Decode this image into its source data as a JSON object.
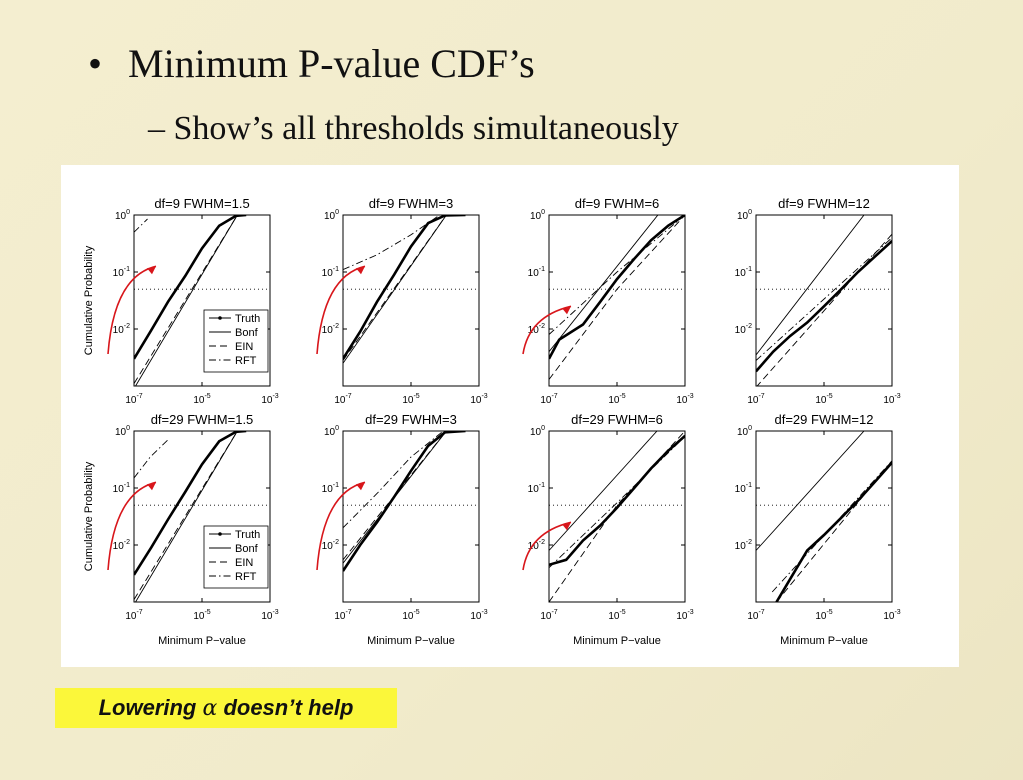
{
  "slide": {
    "bullet_symbol": "•",
    "bullet_text": "Minimum P-value CDF’s",
    "sub_bullet_text": "– Show’s all thresholds simultaneously",
    "callout": {
      "prefix": "Lowering ",
      "symbol": "α",
      "suffix": " doesn’t help"
    },
    "colors": {
      "background": "#f2ecce",
      "callout_bg": "#fbf73a",
      "arrow": "#d8161b"
    }
  },
  "chart_data": {
    "type": "line",
    "layout": "grid 2 rows x 4 columns",
    "xlabel": "Minimum P−value",
    "ylabel": "Cumulative Probability",
    "x_scale": "log",
    "y_scale": "log",
    "xlim": [
      1e-07,
      0.001
    ],
    "ylim": [
      0.001,
      1
    ],
    "x_ticks": [
      "10^-7",
      "10^-5",
      "10^-3"
    ],
    "y_ticks": [
      "10^0",
      "10^-1",
      "10^-2"
    ],
    "reference_line_y": 0.05,
    "legend": {
      "placement": "bottom-right of first panel in each row",
      "entries": [
        "Truth",
        "Bonf",
        "EIN",
        "RFT"
      ]
    },
    "panels": [
      {
        "title": "df=9  FWHM=1.5",
        "df": 9,
        "fwhm": 1.5,
        "series": [
          {
            "name": "Truth",
            "x": [
              1e-07,
              3.2e-07,
              1e-06,
              3.2e-06,
              1e-05,
              3.2e-05,
              0.0001,
              0.0002
            ],
            "y": [
              0.003,
              0.0095,
              0.03,
              0.085,
              0.26,
              0.65,
              0.97,
              1
            ]
          },
          {
            "name": "Bonf",
            "x": [
              1e-07,
              0.00011
            ],
            "y": [
              0.0009,
              1
            ]
          },
          {
            "name": "EIN",
            "x": [
              1e-07,
              0.00011
            ],
            "y": [
              0.0011,
              1
            ]
          },
          {
            "name": "RFT",
            "x": [
              1e-07,
              2.5e-07
            ],
            "y": [
              0.5,
              0.85
            ]
          }
        ]
      },
      {
        "title": "df=9  FWHM=3",
        "df": 9,
        "fwhm": 3,
        "series": [
          {
            "name": "Truth",
            "x": [
              1e-07,
              3.2e-07,
              1e-06,
              3.2e-06,
              1e-05,
              3.2e-05,
              0.0001,
              0.0004
            ],
            "y": [
              0.003,
              0.009,
              0.03,
              0.09,
              0.28,
              0.72,
              0.98,
              1
            ]
          },
          {
            "name": "Bonf",
            "x": [
              1e-07,
              0.00011
            ],
            "y": [
              0.0025,
              1
            ]
          },
          {
            "name": "EIN",
            "x": [
              1e-07,
              0.00011
            ],
            "y": [
              0.0028,
              1
            ]
          },
          {
            "name": "RFT",
            "x": [
              1e-07,
              1e-06,
              1e-05,
              7e-05
            ],
            "y": [
              0.11,
              0.2,
              0.45,
              1
            ]
          }
        ]
      },
      {
        "title": "df=9  FWHM=6",
        "df": 9,
        "fwhm": 6,
        "series": [
          {
            "name": "Truth",
            "x": [
              1e-07,
              2e-07,
              1e-06,
              3.2e-06,
              1e-05,
              3.2e-05,
              0.0001,
              0.00032,
              0.001
            ],
            "y": [
              0.003,
              0.0065,
              0.012,
              0.03,
              0.075,
              0.17,
              0.36,
              0.65,
              1
            ]
          },
          {
            "name": "Bonf",
            "x": [
              1e-07,
              0.00016
            ],
            "y": [
              0.004,
              1
            ]
          },
          {
            "name": "EIN",
            "x": [
              1e-07,
              1e-05,
              0.001
            ],
            "y": [
              0.0013,
              0.05,
              1
            ]
          },
          {
            "name": "RFT",
            "x": [
              1e-07,
              1e-05,
              0.001
            ],
            "y": [
              0.008,
              0.1,
              1
            ]
          }
        ]
      },
      {
        "title": "df=9  FWHM=12",
        "df": 9,
        "fwhm": 12,
        "series": [
          {
            "name": "Truth",
            "x": [
              1e-07,
              3.2e-07,
              1e-06,
              3.2e-06,
              1e-05,
              3.2e-05,
              0.0001,
              0.001
            ],
            "y": [
              0.0018,
              0.004,
              0.0075,
              0.013,
              0.025,
              0.05,
              0.1,
              0.35
            ]
          },
          {
            "name": "Bonf",
            "x": [
              1e-07,
              0.00015
            ],
            "y": [
              0.0035,
              1
            ]
          },
          {
            "name": "EIN",
            "x": [
              1e-07,
              0.001
            ],
            "y": [
              0.00095,
              0.46
            ]
          },
          {
            "name": "RFT",
            "x": [
              1e-07,
              0.001
            ],
            "y": [
              0.0028,
              0.4
            ]
          }
        ]
      },
      {
        "title": "df=29  FWHM=1.5",
        "df": 29,
        "fwhm": 1.5,
        "series": [
          {
            "name": "Truth",
            "x": [
              1e-07,
              3.2e-07,
              1e-06,
              3.2e-06,
              1e-05,
              3.2e-05,
              0.0001,
              0.0002
            ],
            "y": [
              0.003,
              0.009,
              0.028,
              0.085,
              0.26,
              0.66,
              0.97,
              1
            ]
          },
          {
            "name": "Bonf",
            "x": [
              1e-07,
              0.00011
            ],
            "y": [
              0.0009,
              1
            ]
          },
          {
            "name": "EIN",
            "x": [
              1e-07,
              0.00011
            ],
            "y": [
              0.0011,
              1
            ]
          },
          {
            "name": "RFT",
            "x": [
              1e-07,
              3e-07,
              1e-06
            ],
            "y": [
              0.15,
              0.35,
              0.7
            ]
          }
        ]
      },
      {
        "title": "df=29  FWHM=3",
        "df": 29,
        "fwhm": 3,
        "series": [
          {
            "name": "Truth",
            "x": [
              1e-07,
              3.2e-07,
              1e-06,
              3.2e-06,
              1e-05,
              3.2e-05,
              0.0001,
              0.0004
            ],
            "y": [
              0.0035,
              0.01,
              0.025,
              0.07,
              0.2,
              0.55,
              0.95,
              1
            ]
          },
          {
            "name": "Bonf",
            "x": [
              1e-07,
              0.00011
            ],
            "y": [
              0.0048,
              1
            ]
          },
          {
            "name": "EIN",
            "x": [
              1e-07,
              0.00011
            ],
            "y": [
              0.0055,
              1
            ]
          },
          {
            "name": "RFT",
            "x": [
              1e-07,
              1e-06,
              1e-05,
              9e-05
            ],
            "y": [
              0.02,
              0.08,
              0.35,
              1
            ]
          }
        ]
      },
      {
        "title": "df=29  FWHM=6",
        "df": 29,
        "fwhm": 6,
        "series": [
          {
            "name": "Truth",
            "x": [
              1e-07,
              3.2e-07,
              1e-06,
              3.2e-06,
              1e-05,
              3.2e-05,
              0.0001,
              0.00032,
              0.001
            ],
            "y": [
              0.0045,
              0.0055,
              0.012,
              0.022,
              0.045,
              0.1,
              0.22,
              0.45,
              0.82
            ]
          },
          {
            "name": "Bonf",
            "x": [
              1e-07,
              0.00015
            ],
            "y": [
              0.008,
              1
            ]
          },
          {
            "name": "EIN",
            "x": [
              1e-07,
              1e-05,
              0.001
            ],
            "y": [
              0.001,
              0.05,
              1
            ]
          },
          {
            "name": "RFT",
            "x": [
              1e-07,
              1e-05,
              0.001
            ],
            "y": [
              0.004,
              0.055,
              0.8
            ]
          }
        ]
      },
      {
        "title": "df=29  FWHM=12",
        "df": 29,
        "fwhm": 12,
        "series": [
          {
            "name": "Truth",
            "x": [
              4e-07,
              1e-06,
              3.2e-06,
              1e-05,
              3.2e-05,
              0.0001,
              0.00032,
              0.001
            ],
            "y": [
              0.001,
              0.0025,
              0.008,
              0.015,
              0.03,
              0.06,
              0.13,
              0.28
            ]
          },
          {
            "name": "Bonf",
            "x": [
              1e-07,
              0.00015
            ],
            "y": [
              0.008,
              1
            ]
          },
          {
            "name": "EIN",
            "x": [
              4e-07,
              0.001
            ],
            "y": [
              0.001,
              0.3
            ]
          },
          {
            "name": "RFT",
            "x": [
              3e-07,
              0.001
            ],
            "y": [
              0.0015,
              0.3
            ]
          }
        ]
      }
    ]
  }
}
